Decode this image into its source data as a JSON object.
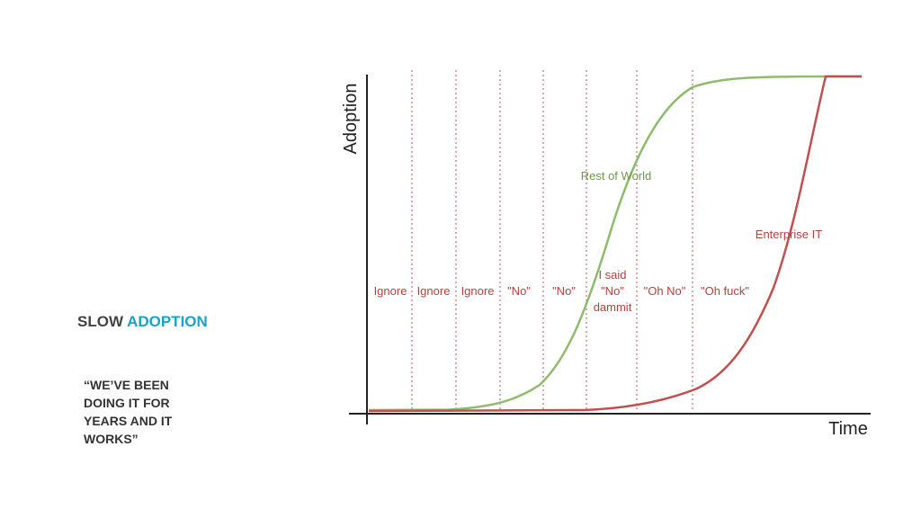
{
  "slide": {
    "heading": {
      "part1": "SLOW",
      "part2": "ADOPTION"
    },
    "quote": [
      "“WE’VE BEEN",
      "DOING IT FOR",
      "YEARS AND IT",
      "WORKS”"
    ]
  },
  "diagram": {
    "y_axis_label": "Adoption",
    "x_axis_label": "Time",
    "phases": [
      [
        "Ignore"
      ],
      [
        "Ignore"
      ],
      [
        "Ignore"
      ],
      [
        "\"No\""
      ],
      [
        "\"No\""
      ],
      [
        "I said",
        "\"No\"",
        "dammit"
      ],
      [
        "\"Oh No\""
      ],
      [
        "\"Oh fuck\""
      ]
    ],
    "curves": {
      "rest_of_world": "Rest of World",
      "enterprise_it": "Enterprise IT"
    }
  }
}
